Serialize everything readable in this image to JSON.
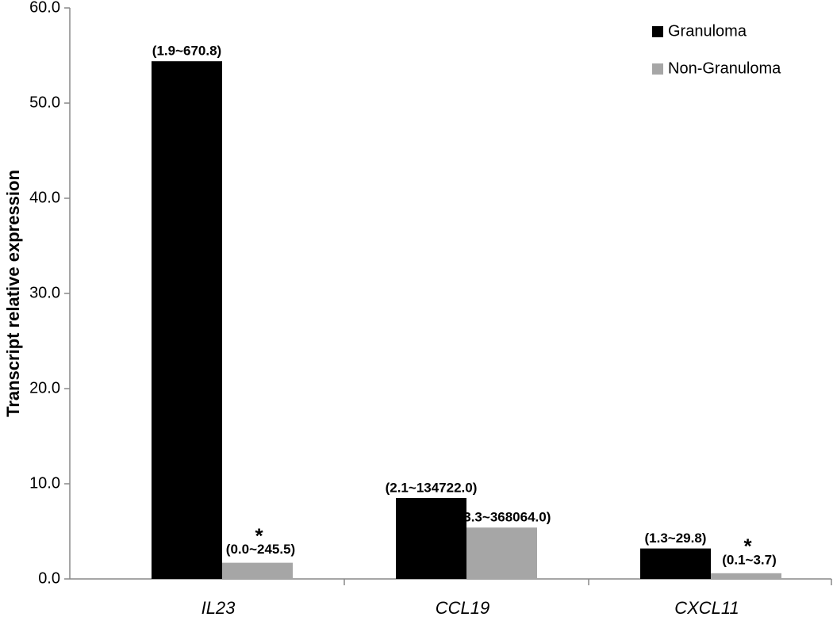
{
  "chart_data": {
    "type": "bar",
    "y_label": "Transcript relative expression",
    "categories": [
      "IL23",
      "CCL19",
      "CXCL11"
    ],
    "series": [
      {
        "name": "Granuloma",
        "color": "#000000",
        "values": [
          54.4,
          8.5,
          3.2
        ],
        "range_labels": [
          "(1.9~670.8)",
          "(2.1~134722.0)",
          "(1.3~29.8)"
        ]
      },
      {
        "name": "Non-Granuloma",
        "color": "#a6a6a6",
        "values": [
          1.7,
          5.4,
          0.6
        ],
        "range_labels": [
          "(0.0~245.5)",
          "(3.3~368064.0)",
          "(0.1~3.7)"
        ],
        "markers": [
          "*",
          null,
          "*"
        ]
      }
    ],
    "ylim": [
      0,
      60
    ],
    "yticks": [
      {
        "value": 0,
        "label": "0.0"
      },
      {
        "value": 10,
        "label": "10.0"
      },
      {
        "value": 20,
        "label": "20.0"
      },
      {
        "value": 30,
        "label": "30.0"
      },
      {
        "value": 40,
        "label": "40.0"
      },
      {
        "value": 50,
        "label": "50.0"
      },
      {
        "value": 60,
        "label": "60.0"
      }
    ],
    "legend": "top-right",
    "grid": false
  }
}
